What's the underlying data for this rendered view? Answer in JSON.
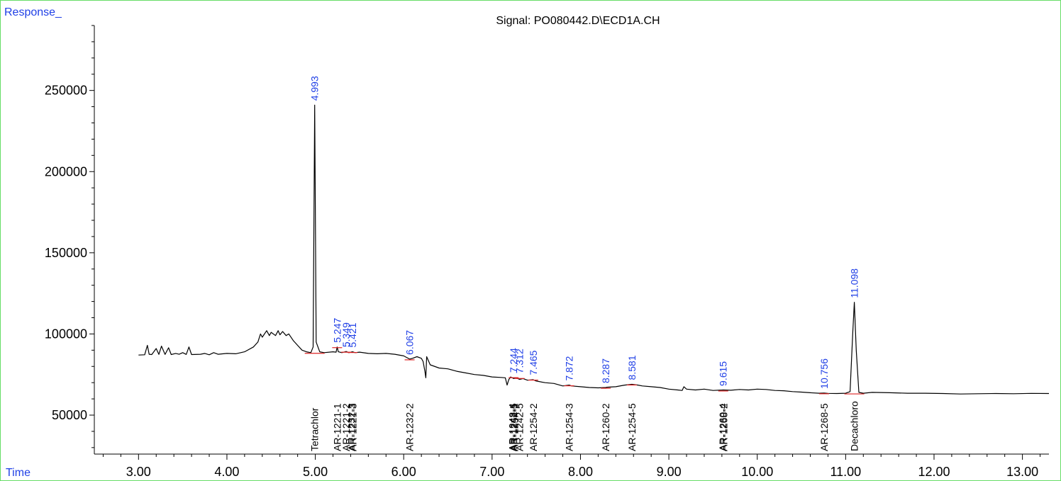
{
  "chart_data": {
    "type": "line",
    "title": "Signal: PO080442.D\\ECD1A.CH",
    "ylabel": "Response_",
    "xlabel": "Time",
    "xlim": [
      2.5,
      13.3
    ],
    "ylim": [
      26000,
      290000
    ],
    "x_ticks": [
      "3.00",
      "4.00",
      "5.00",
      "6.00",
      "7.00",
      "8.00",
      "9.00",
      "10.00",
      "11.00",
      "12.00",
      "13.00"
    ],
    "y_ticks": [
      "50000",
      "100000",
      "150000",
      "200000",
      "250000"
    ],
    "grid": false,
    "line_color": "#000000",
    "peak_label_color": "#1f3fe6",
    "baseline_color": "#dd2222",
    "series": [
      {
        "x": [
          3.0,
          3.07,
          3.1,
          3.12,
          3.15,
          3.2,
          3.23,
          3.26,
          3.3,
          3.34,
          3.37,
          3.42,
          3.46,
          3.5,
          3.54,
          3.57,
          3.6,
          3.7,
          3.75,
          3.8,
          3.85,
          3.9,
          4.0,
          4.1,
          4.2,
          4.3,
          4.35,
          4.38,
          4.4,
          4.45,
          4.48,
          4.5,
          4.55,
          4.58,
          4.6,
          4.63,
          4.67,
          4.7,
          4.75,
          4.8,
          4.85,
          4.9,
          4.95,
          4.975,
          4.993,
          5.01,
          5.05,
          5.1,
          5.2,
          5.235,
          5.247,
          5.26,
          5.3,
          5.349,
          5.38,
          5.421,
          5.45,
          5.5,
          5.6,
          5.7,
          5.8,
          5.9,
          6.0,
          6.067,
          6.1,
          6.15,
          6.2,
          6.22,
          6.24,
          6.25,
          6.26,
          6.3,
          6.4,
          6.5,
          6.6,
          6.7,
          6.8,
          6.9,
          7.0,
          7.1,
          7.15,
          7.17,
          7.19,
          7.21,
          7.244,
          7.27,
          7.312,
          7.35,
          7.4,
          7.465,
          7.5,
          7.6,
          7.7,
          7.8,
          7.872,
          7.9,
          8.0,
          8.1,
          8.2,
          8.287,
          8.3,
          8.4,
          8.5,
          8.581,
          8.65,
          8.7,
          8.8,
          8.9,
          9.0,
          9.1,
          9.15,
          9.17,
          9.2,
          9.3,
          9.4,
          9.5,
          9.615,
          9.7,
          9.8,
          9.9,
          10.0,
          10.1,
          10.2,
          10.3,
          10.4,
          10.5,
          10.6,
          10.7,
          10.756,
          10.8,
          10.9,
          11.0,
          11.05,
          11.08,
          11.098,
          11.12,
          11.15,
          11.2,
          11.3,
          11.5,
          11.7,
          11.9,
          12.1,
          12.3,
          12.5,
          12.7,
          12.9,
          13.1,
          13.3
        ],
        "y": [
          87000,
          87200,
          93000,
          87500,
          87300,
          91000,
          87400,
          92500,
          87400,
          91500,
          87300,
          88000,
          87500,
          88500,
          87400,
          92000,
          87300,
          87500,
          88000,
          87200,
          88500,
          87500,
          88000,
          87800,
          89000,
          92000,
          95000,
          100000,
          98000,
          102000,
          99000,
          101000,
          99000,
          102000,
          99500,
          101500,
          99000,
          100000,
          96000,
          93000,
          90000,
          89000,
          88500,
          92000,
          241000,
          95000,
          89000,
          88500,
          89000,
          88800,
          92000,
          89000,
          88500,
          89200,
          88500,
          89000,
          88500,
          88800,
          88000,
          87800,
          88000,
          87500,
          86500,
          84500,
          85000,
          86000,
          85000,
          83000,
          77000,
          73000,
          86000,
          81000,
          79000,
          78500,
          77000,
          76000,
          75000,
          74500,
          73500,
          73200,
          73000,
          68500,
          72000,
          73500,
          72500,
          73000,
          72000,
          72500,
          71500,
          71800,
          71000,
          70000,
          69500,
          68000,
          68500,
          68000,
          67500,
          67000,
          66800,
          67000,
          67200,
          67500,
          68500,
          69000,
          68500,
          68000,
          67500,
          67000,
          66000,
          65500,
          65200,
          67500,
          66000,
          65500,
          66000,
          65200,
          65500,
          65300,
          65800,
          65500,
          66000,
          65800,
          65200,
          65000,
          64500,
          64200,
          63800,
          63500,
          63600,
          63400,
          63300,
          63500,
          64500,
          100000,
          119500,
          90000,
          64000,
          63500,
          64000,
          63800,
          63500,
          63500,
          63300,
          63000,
          63200,
          63300,
          63200,
          63400,
          63300
        ]
      }
    ],
    "peaks": [
      {
        "rt": "4.993",
        "x": 4.993,
        "y": 241000
      },
      {
        "rt": "5.247",
        "x": 5.247,
        "y": 92000
      },
      {
        "rt": "5.349",
        "x": 5.349,
        "y": 89200
      },
      {
        "rt": "5.421",
        "x": 5.421,
        "y": 89000
      },
      {
        "rt": "6.067",
        "x": 6.067,
        "y": 84500
      },
      {
        "rt": "7.244",
        "x": 7.244,
        "y": 73500
      },
      {
        "rt": "7.312",
        "x": 7.312,
        "y": 73000
      },
      {
        "rt": "7.465",
        "x": 7.465,
        "y": 72000
      },
      {
        "rt": "7.872",
        "x": 7.872,
        "y": 68500
      },
      {
        "rt": "8.287",
        "x": 8.287,
        "y": 67000
      },
      {
        "rt": "8.581",
        "x": 8.581,
        "y": 69000
      },
      {
        "rt": "9.615",
        "x": 9.615,
        "y": 65300
      },
      {
        "rt": "10.756",
        "x": 10.756,
        "y": 63600
      },
      {
        "rt": "11.098",
        "x": 11.098,
        "y": 119500
      }
    ],
    "compounds": [
      {
        "label": "Tetrachlor",
        "x": 4.993
      },
      {
        "label": "AR-1221-1",
        "x": 5.247
      },
      {
        "label": "AR-1221-2",
        "x": 5.349
      },
      {
        "label": "AR-1232-3",
        "x": 5.41
      },
      {
        "label": "AR-1221-3",
        "x": 5.425
      },
      {
        "label": "AR-1232-2",
        "x": 6.067
      },
      {
        "label": "AR-1248-4",
        "x": 7.232
      },
      {
        "label": "AR-1242-5",
        "x": 7.244
      },
      {
        "label": "AR-1254-1",
        "x": 7.256
      },
      {
        "label": "AR-1242-5",
        "x": 7.312
      },
      {
        "label": "AR-1254-2",
        "x": 7.465
      },
      {
        "label": "AR-1254-3",
        "x": 7.872
      },
      {
        "label": "AR-1260-2",
        "x": 8.287
      },
      {
        "label": "AR-1254-5",
        "x": 8.581
      },
      {
        "label": "AR-1260-4",
        "x": 9.608
      },
      {
        "label": "AR-1268-2",
        "x": 9.622
      },
      {
        "label": "AR-1268-5",
        "x": 10.756
      },
      {
        "label": "Decachloro",
        "x": 11.098
      }
    ]
  }
}
